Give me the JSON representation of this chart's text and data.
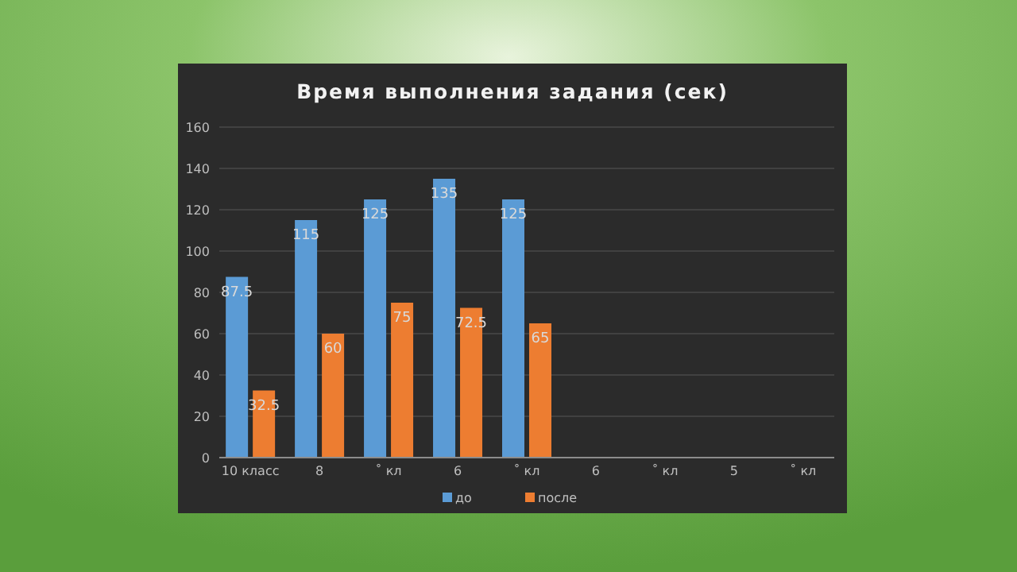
{
  "chart_data": {
    "type": "bar",
    "title": "Время выполнения задания (сек)",
    "categories": [
      "10 класс",
      "8",
      "˚ кл",
      "6",
      "˚ кл",
      "6",
      "˚ кл",
      "5",
      "˚ кл"
    ],
    "series": [
      {
        "name": "до",
        "color": "#5b9bd5",
        "values": [
          87.5,
          115,
          125,
          135,
          125,
          null,
          null,
          null,
          null
        ]
      },
      {
        "name": "после",
        "color": "#ed7d31",
        "values": [
          32.5,
          60,
          75,
          72.5,
          65,
          null,
          null,
          null,
          null
        ]
      }
    ],
    "ylim": [
      0,
      160
    ],
    "yticks": [
      0,
      20,
      40,
      60,
      80,
      100,
      120,
      140,
      160
    ],
    "grid": "y",
    "legend": "bottom",
    "data_labels": true
  }
}
